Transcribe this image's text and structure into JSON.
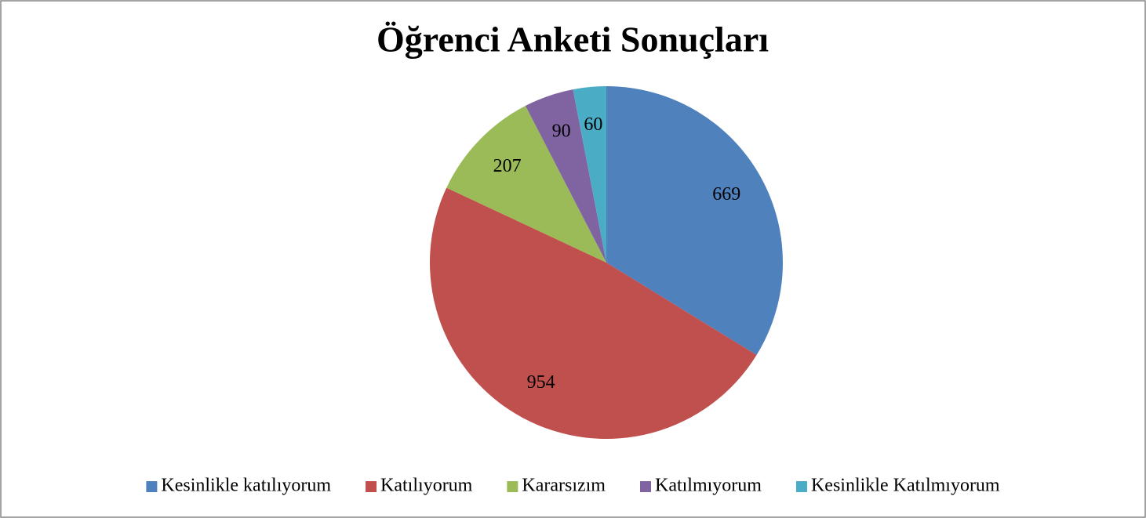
{
  "chart_data": {
    "type": "pie",
    "title": "Öğrenci Anketi Sonuçları",
    "categories": [
      "Kesinlikle katılıyorum",
      "Katılıyorum",
      "Kararsızım",
      "Katılmıyorum",
      "Kesinlikle Katılmıyorum"
    ],
    "values": [
      669,
      954,
      207,
      90,
      60
    ],
    "colors": [
      "#4f81bd",
      "#c0504d",
      "#9bbb59",
      "#8064a2",
      "#4bacc6"
    ],
    "legend": "bottom"
  }
}
